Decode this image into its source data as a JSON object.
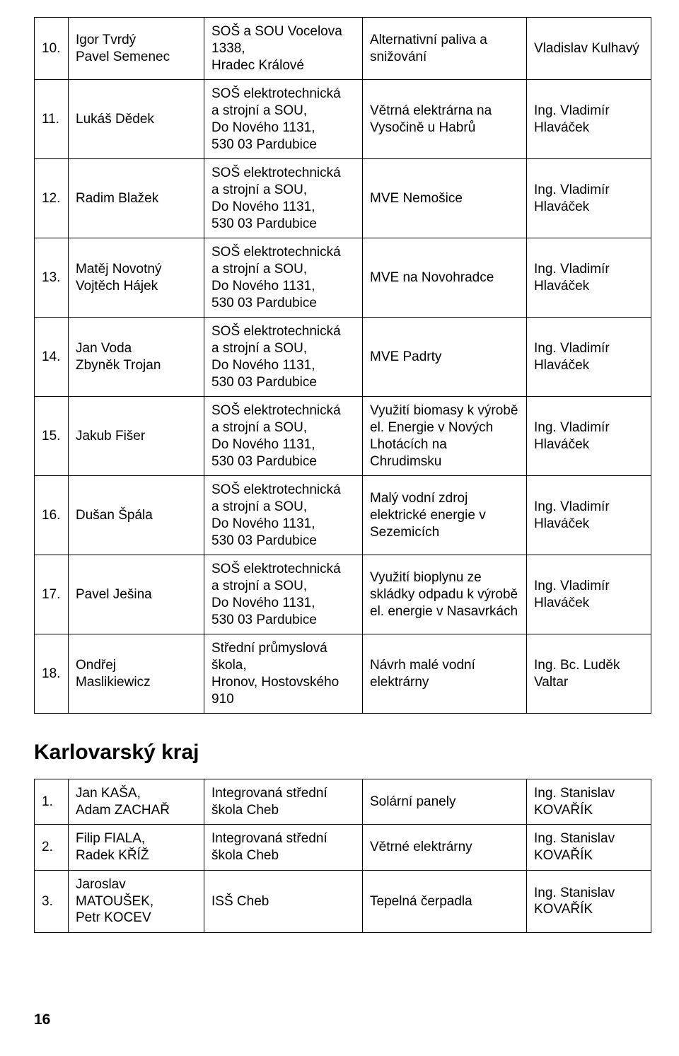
{
  "table1": {
    "rows": [
      {
        "n": "10.",
        "names": "Igor Tvrdý\nPavel Semenec",
        "school": "SOŠ a SOU Vocelova 1338,\nHradec Králové",
        "project": "Alternativní paliva a snižování",
        "supervisor": "Vladislav Kulhavý"
      },
      {
        "n": "11.",
        "names": "Lukáš Dědek",
        "school": "SOŠ elektrotechnická\na strojní a SOU,\nDo Nového 1131,\n530 03 Pardubice",
        "project": "Větrná elektrárna na Vysočině u Habrů",
        "supervisor": "Ing. Vladimír Hlaváček"
      },
      {
        "n": "12.",
        "names": "Radim Blažek",
        "school": "SOŠ elektrotechnická\na strojní a SOU,\nDo Nového 1131,\n530 03 Pardubice",
        "project": "MVE Nemošice",
        "supervisor": "Ing. Vladimír Hlaváček"
      },
      {
        "n": "13.",
        "names": "Matěj Novotný\nVojtěch Hájek",
        "school": "SOŠ elektrotechnická\na strojní a SOU,\nDo Nového 1131,\n530 03 Pardubice",
        "project": "MVE na Novohradce",
        "supervisor": "Ing. Vladimír Hlaváček"
      },
      {
        "n": "14.",
        "names": "Jan Voda\nZbyněk Trojan",
        "school": "SOŠ elektrotechnická\na strojní a SOU,\nDo Nového 1131,\n530 03 Pardubice",
        "project": "MVE Padrty",
        "supervisor": "Ing. Vladimír Hlaváček"
      },
      {
        "n": "15.",
        "names": "Jakub Fišer",
        "school": "SOŠ elektrotechnická\na strojní a SOU,\nDo Nového 1131,\n530 03 Pardubice",
        "project": "Využití biomasy k výrobě el. Energie v Nových Lhotácích na Chrudimsku",
        "supervisor": "Ing. Vladimír Hlaváček"
      },
      {
        "n": "16.",
        "names": "Dušan Špála",
        "school": "SOŠ elektrotechnická\na strojní a SOU,\nDo Nového 1131,\n530 03 Pardubice",
        "project": "Malý vodní zdroj elektrické energie v Sezemicích",
        "supervisor": "Ing. Vladimír Hlaváček"
      },
      {
        "n": "17.",
        "names": "Pavel Ješina",
        "school": "SOŠ elektrotechnická\na strojní a SOU,\nDo Nového 1131,\n530 03 Pardubice",
        "project": "Využití bioplynu ze skládky odpadu k výrobě el. energie v Nasavrkách",
        "supervisor": "Ing. Vladimír Hlaváček"
      },
      {
        "n": "18.",
        "names": "Ondřej\nMaslikiewicz",
        "school": "Střední průmyslová škola,\nHronov, Hostovského 910",
        "project": "Návrh malé vodní elektrárny",
        "supervisor": "Ing. Bc. Luděk Valtar"
      }
    ]
  },
  "section_title": "Karlovarský kraj",
  "table2": {
    "rows": [
      {
        "n": "1.",
        "names": "Jan KAŠA,\nAdam ZACHAŘ",
        "school": "Integrovaná střední\nškola Cheb",
        "project": "Solární panely",
        "supervisor": "Ing. Stanislav KOVAŘÍK"
      },
      {
        "n": "2.",
        "names": "Filip FIALA,\nRadek KŘÍŽ",
        "school": "Integrovaná střední\nškola Cheb",
        "project": "Větrné elektrárny",
        "supervisor": "Ing. Stanislav KOVAŘÍK"
      },
      {
        "n": "3.",
        "names": "Jaroslav MATOUŠEK,\nPetr KOCEV",
        "school": "ISŠ Cheb",
        "project": "Tepelná čerpadla",
        "supervisor": "Ing. Stanislav KOVAŘÍK"
      }
    ]
  },
  "page_number": "16"
}
